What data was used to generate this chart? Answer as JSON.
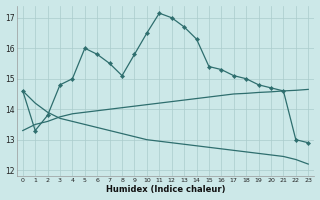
{
  "xlabel": "Humidex (Indice chaleur)",
  "bg_color": "#cce8e8",
  "grid_color": "#aacccc",
  "line_color": "#2e6e6e",
  "xlim": [
    -0.5,
    23.5
  ],
  "ylim": [
    11.8,
    17.4
  ],
  "yticks": [
    12,
    13,
    14,
    15,
    16,
    17
  ],
  "xticks": [
    0,
    1,
    2,
    3,
    4,
    5,
    6,
    7,
    8,
    9,
    10,
    11,
    12,
    13,
    14,
    15,
    16,
    17,
    18,
    19,
    20,
    21,
    22,
    23
  ],
  "line1_x": [
    0,
    1,
    2,
    3,
    4,
    5,
    6,
    7,
    8,
    9,
    10,
    11,
    12,
    13,
    14,
    15,
    16,
    17,
    18,
    19,
    20,
    21,
    22,
    23
  ],
  "line1_y": [
    14.6,
    13.3,
    13.8,
    14.8,
    15.0,
    16.0,
    15.8,
    15.5,
    15.1,
    15.8,
    16.5,
    17.15,
    17.0,
    16.7,
    16.3,
    15.4,
    15.3,
    15.1,
    15.0,
    14.8,
    14.7,
    14.6,
    13.0,
    12.9
  ],
  "line2_x": [
    0,
    1,
    2,
    3,
    4,
    5,
    6,
    7,
    8,
    9,
    10,
    11,
    12,
    13,
    14,
    15,
    16,
    17,
    18,
    19,
    20,
    21,
    22,
    23
  ],
  "line2_y": [
    13.3,
    13.5,
    13.6,
    13.75,
    13.85,
    13.9,
    13.95,
    14.0,
    14.05,
    14.1,
    14.15,
    14.2,
    14.25,
    14.3,
    14.35,
    14.4,
    14.45,
    14.5,
    14.52,
    14.55,
    14.57,
    14.6,
    14.62,
    14.65
  ],
  "line3_x": [
    0,
    1,
    2,
    3,
    4,
    5,
    6,
    7,
    8,
    9,
    10,
    11,
    12,
    13,
    14,
    15,
    16,
    17,
    18,
    19,
    20,
    21,
    22,
    23
  ],
  "line3_y": [
    14.6,
    14.2,
    13.9,
    13.7,
    13.6,
    13.5,
    13.4,
    13.3,
    13.2,
    13.1,
    13.0,
    12.95,
    12.9,
    12.85,
    12.8,
    12.75,
    12.7,
    12.65,
    12.6,
    12.55,
    12.5,
    12.45,
    12.35,
    12.2
  ]
}
